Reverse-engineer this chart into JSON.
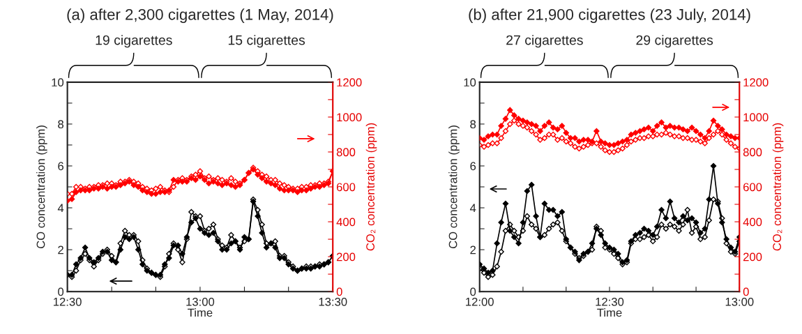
{
  "chart_data": [
    {
      "type": "line",
      "title": "(a) after 2,300 cigarettes (1 May, 2014)",
      "xlabel": "Time",
      "ylabel": "CO concentration (ppm)",
      "y2label": "CO₂ concentration (ppm)",
      "annotations": [
        "19 cigarettes",
        "15 cigarettes"
      ],
      "x": [
        12.5,
        12.517,
        12.533,
        12.55,
        12.567,
        12.583,
        12.6,
        12.617,
        12.633,
        12.65,
        12.667,
        12.683,
        12.7,
        12.717,
        12.733,
        12.75,
        12.767,
        12.783,
        12.8,
        12.817,
        12.833,
        12.85,
        12.867,
        12.883,
        12.9,
        12.917,
        12.933,
        12.95,
        12.967,
        12.983,
        13.0,
        13.017,
        13.033,
        13.05,
        13.067,
        13.083,
        13.1,
        13.117,
        13.133,
        13.15,
        13.167,
        13.183,
        13.2,
        13.217,
        13.233,
        13.25,
        13.267,
        13.283,
        13.3,
        13.317,
        13.333,
        13.35,
        13.367,
        13.383,
        13.4,
        13.417,
        13.433,
        13.45,
        13.467,
        13.483,
        13.5
      ],
      "series": [
        {
          "color": "#000000",
          "values": [
            0.8,
            0.8,
            1.3,
            1.6,
            2.1,
            1.6,
            1.4,
            1.6,
            1.9,
            1.9,
            1.5,
            1.4,
            2.0,
            2.6,
            2.5,
            2.6,
            2.0,
            1.3,
            1.0,
            0.9,
            0.8,
            0.8,
            1.3,
            1.6,
            2.2,
            2.2,
            1.8,
            2.6,
            3.3,
            3.5,
            3.0,
            2.8,
            2.7,
            2.8,
            2.4,
            2.0,
            2.0,
            2.3,
            2.4,
            2.0,
            2.6,
            2.5,
            4.3,
            3.6,
            2.8,
            2.1,
            2.3,
            2.1,
            1.6,
            1.6,
            1.3,
            1.1,
            1.0,
            1.1,
            1.1,
            1.1,
            1.2,
            1.2,
            1.3,
            1.4,
            1.7
          ]
        },
        {
          "color": "#000000",
          "values": [
            0.8,
            0.7,
            1.0,
            1.5,
            1.8,
            1.5,
            1.2,
            1.5,
            1.8,
            2.0,
            1.7,
            1.4,
            2.3,
            2.9,
            2.7,
            2.7,
            2.4,
            1.5,
            1.1,
            0.9,
            0.8,
            0.7,
            1.2,
            1.8,
            2.3,
            2.0,
            1.4,
            2.5,
            3.8,
            3.6,
            3.6,
            2.9,
            3.0,
            3.2,
            2.5,
            2.2,
            2.1,
            2.7,
            2.4,
            2.1,
            2.4,
            2.5,
            4.4,
            3.9,
            3.2,
            2.3,
            2.3,
            2.4,
            1.7,
            1.7,
            1.4,
            1.2,
            1.0,
            1.1,
            1.2,
            1.2,
            1.2,
            1.3,
            1.3,
            1.4,
            1.7
          ]
        },
        {
          "color": "#ff0000",
          "axis": "y2",
          "values": [
            520,
            530,
            570,
            580,
            580,
            580,
            590,
            590,
            600,
            590,
            600,
            600,
            610,
            620,
            630,
            610,
            600,
            580,
            570,
            560,
            560,
            570,
            570,
            580,
            640,
            630,
            630,
            630,
            650,
            640,
            660,
            640,
            620,
            630,
            620,
            610,
            620,
            610,
            600,
            610,
            640,
            680,
            700,
            670,
            650,
            630,
            620,
            610,
            590,
            580,
            580,
            580,
            570,
            580,
            580,
            590,
            600,
            600,
            610,
            620,
            690
          ]
        },
        {
          "color": "#ff0000",
          "axis": "y2",
          "values": [
            560,
            560,
            600,
            600,
            590,
            600,
            600,
            610,
            610,
            620,
            620,
            610,
            630,
            630,
            640,
            630,
            620,
            600,
            590,
            580,
            590,
            600,
            580,
            570,
            600,
            640,
            650,
            640,
            660,
            670,
            690,
            650,
            660,
            640,
            650,
            640,
            630,
            650,
            630,
            620,
            640,
            680,
            710,
            690,
            670,
            660,
            640,
            640,
            620,
            610,
            600,
            590,
            590,
            600,
            600,
            610,
            610,
            620,
            620,
            630,
            690
          ]
        }
      ],
      "marker": "diamond",
      "line_style": "solid",
      "grid": false,
      "legend": false,
      "xlim": [
        12.5,
        13.5
      ],
      "xticks": [
        {
          "value": 12.5,
          "label": "12:30"
        },
        {
          "value": 12.667,
          "label": null
        },
        {
          "value": 12.833,
          "label": null
        },
        {
          "value": 13.0,
          "label": "13:00"
        },
        {
          "value": 13.167,
          "label": null
        },
        {
          "value": 13.333,
          "label": null
        },
        {
          "value": 13.5,
          "label": "13:30"
        }
      ],
      "ylim": [
        0,
        10
      ],
      "yticks": [
        0,
        {
          "value": 1,
          "label": null
        },
        2,
        {
          "value": 3,
          "label": null
        },
        4,
        {
          "value": 5,
          "label": null
        },
        6,
        {
          "value": 7,
          "label": null
        },
        8,
        {
          "value": 9,
          "label": null
        },
        10
      ],
      "y2lim": [
        0,
        1200
      ],
      "y2ticks": [
        0,
        {
          "value": 100,
          "label": null
        },
        200,
        {
          "value": 300,
          "label": null
        },
        400,
        {
          "value": 500,
          "label": null
        },
        600,
        {
          "value": 700,
          "label": null
        },
        800,
        {
          "value": 900,
          "label": null
        },
        1000,
        {
          "value": 1100,
          "label": null
        },
        1200
      ]
    },
    {
      "type": "line",
      "title": "(b) after 21,900 cigarettes (23 July, 2014)",
      "xlabel": "Time",
      "ylabel": "CO concentration (ppm)",
      "y2label": "CO₂ concentration (ppm)",
      "annotations": [
        "27 cigarettes",
        "29 cigarettes"
      ],
      "x": [
        12.0,
        12.017,
        12.033,
        12.05,
        12.067,
        12.083,
        12.1,
        12.117,
        12.133,
        12.15,
        12.167,
        12.183,
        12.2,
        12.217,
        12.233,
        12.25,
        12.267,
        12.283,
        12.3,
        12.317,
        12.333,
        12.35,
        12.367,
        12.383,
        12.4,
        12.417,
        12.433,
        12.45,
        12.467,
        12.483,
        12.5,
        12.517,
        12.533,
        12.55,
        12.567,
        12.583,
        12.6,
        12.617,
        12.633,
        12.65,
        12.667,
        12.683,
        12.7,
        12.717,
        12.733,
        12.75,
        12.767,
        12.783,
        12.8,
        12.817,
        12.833,
        12.85,
        12.867,
        12.883,
        12.9,
        12.917,
        12.933,
        12.95,
        12.967,
        12.983,
        13.0
      ],
      "series": [
        {
          "color": "#000000",
          "values": [
            1.3,
            1.1,
            0.9,
            1.0,
            2.3,
            3.3,
            4.2,
            2.9,
            2.6,
            2.3,
            3.3,
            4.8,
            5.1,
            3.6,
            2.6,
            4.2,
            3.9,
            3.9,
            3.6,
            3.8,
            2.5,
            2.1,
            1.9,
            1.5,
            1.8,
            1.9,
            2.3,
            3.0,
            2.7,
            2.3,
            2.1,
            2.0,
            1.8,
            1.4,
            1.5,
            2.4,
            2.7,
            2.8,
            3.0,
            2.9,
            2.7,
            3.1,
            3.9,
            3.5,
            4.3,
            3.5,
            3.3,
            3.6,
            3.4,
            3.5,
            3.3,
            2.8,
            3.0,
            4.4,
            6.0,
            4.2,
            3.3,
            2.5,
            2.1,
            1.9,
            2.6
          ]
        },
        {
          "color": "#000000",
          "values": [
            1.1,
            0.9,
            0.7,
            0.8,
            1.2,
            1.9,
            2.9,
            3.2,
            2.9,
            2.6,
            2.9,
            3.6,
            3.2,
            3.0,
            2.6,
            2.7,
            3.0,
            3.2,
            3.3,
            2.9,
            2.4,
            2.1,
            1.8,
            1.6,
            1.7,
            1.9,
            2.0,
            3.1,
            2.9,
            2.1,
            2.0,
            1.8,
            1.6,
            1.3,
            1.4,
            2.3,
            2.5,
            2.5,
            2.6,
            2.7,
            2.4,
            2.6,
            3.2,
            3.0,
            3.2,
            3.1,
            2.9,
            3.2,
            3.9,
            2.8,
            3.1,
            2.5,
            2.6,
            3.4,
            4.4,
            4.3,
            3.5,
            2.3,
            1.9,
            1.8,
            2.4
          ]
        },
        {
          "color": "#ff0000",
          "axis": "y2",
          "values": [
            880,
            870,
            890,
            900,
            900,
            950,
            990,
            1040,
            1010,
            990,
            980,
            970,
            960,
            950,
            920,
            950,
            970,
            940,
            930,
            950,
            910,
            880,
            880,
            860,
            870,
            870,
            860,
            920,
            860,
            850,
            840,
            840,
            850,
            860,
            870,
            900,
            910,
            920,
            930,
            940,
            920,
            950,
            970,
            940,
            950,
            940,
            940,
            930,
            920,
            940,
            920,
            900,
            880,
            920,
            980,
            950,
            930,
            900,
            890,
            880,
            880
          ]
        },
        {
          "color": "#ff0000",
          "axis": "y2",
          "values": [
            840,
            830,
            840,
            850,
            850,
            880,
            920,
            960,
            980,
            960,
            950,
            940,
            920,
            900,
            870,
            880,
            900,
            900,
            870,
            880,
            860,
            850,
            830,
            820,
            830,
            840,
            850,
            850,
            830,
            810,
            800,
            800,
            810,
            820,
            840,
            860,
            870,
            880,
            880,
            890,
            890,
            900,
            900,
            910,
            900,
            890,
            890,
            880,
            880,
            870,
            870,
            860,
            850,
            880,
            900,
            920,
            900,
            870,
            850,
            830,
            820
          ]
        }
      ],
      "marker": "diamond",
      "line_style": "solid",
      "grid": false,
      "legend": false,
      "xlim": [
        12.0,
        13.0
      ],
      "xticks": [
        {
          "value": 12.0,
          "label": "12:00"
        },
        {
          "value": 12.167,
          "label": null
        },
        {
          "value": 12.333,
          "label": null
        },
        {
          "value": 12.5,
          "label": "12:30"
        },
        {
          "value": 12.667,
          "label": null
        },
        {
          "value": 12.833,
          "label": null
        },
        {
          "value": 13.0,
          "label": "13:00"
        }
      ],
      "ylim": [
        0,
        10
      ],
      "yticks": [
        0,
        {
          "value": 1,
          "label": null
        },
        2,
        {
          "value": 3,
          "label": null
        },
        4,
        {
          "value": 5,
          "label": null
        },
        6,
        {
          "value": 7,
          "label": null
        },
        8,
        {
          "value": 9,
          "label": null
        },
        10
      ],
      "y2lim": [
        0,
        1200
      ],
      "y2ticks": [
        0,
        {
          "value": 100,
          "label": null
        },
        200,
        {
          "value": 300,
          "label": null
        },
        400,
        {
          "value": 500,
          "label": null
        },
        600,
        {
          "value": 700,
          "label": null
        },
        800,
        {
          "value": 900,
          "label": null
        },
        1000,
        {
          "value": 1100,
          "label": null
        },
        1200
      ]
    }
  ]
}
